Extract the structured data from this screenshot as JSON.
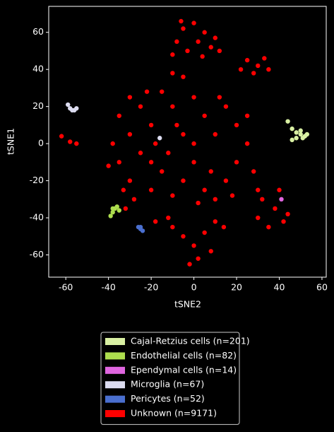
{
  "chart_data": {
    "type": "scatter",
    "xlabel": "tSNE2",
    "ylabel": "tSNE1",
    "xlim": [
      -68,
      62
    ],
    "ylim": [
      -72,
      74
    ],
    "xticks": [
      -60,
      -40,
      -20,
      0,
      20,
      40,
      60
    ],
    "yticks": [
      -60,
      -40,
      -20,
      0,
      20,
      40,
      60
    ],
    "legend": "below",
    "series": [
      {
        "name": "Cajal-Retzius cells (n=201)",
        "color": "#d9f0a3",
        "x": [
          44,
          46,
          48,
          50,
          52,
          48,
          50,
          53,
          46,
          51
        ],
        "y": [
          12,
          8,
          6,
          5,
          4,
          3,
          7,
          5,
          2,
          3
        ]
      },
      {
        "name": "Endothelial cells (n=82)",
        "color": "#addd4e",
        "x": [
          -38,
          -36,
          -38,
          -39,
          -37,
          -35
        ],
        "y": [
          -35,
          -34,
          -37,
          -39,
          -35,
          -36
        ]
      },
      {
        "name": "Ependymal cells (n=14)",
        "color": "#e066e0",
        "x": [
          41
        ],
        "y": [
          -30
        ]
      },
      {
        "name": "Microglia (n=67)",
        "color": "#dcdcf0",
        "x": [
          -59,
          -58,
          -57,
          -55,
          -56,
          -16
        ],
        "y": [
          21,
          19,
          18,
          19,
          18,
          3
        ]
      },
      {
        "name": "Pericytes (n=52)",
        "color": "#4a6fcf",
        "x": [
          -26,
          -25,
          -24,
          -25
        ],
        "y": [
          -45,
          -46,
          -47,
          -45
        ]
      },
      {
        "name": "Unknown (n=9171)",
        "color": "#ff0000",
        "x": [
          -5,
          0,
          5,
          -8,
          2,
          8,
          -3,
          10,
          -10,
          4,
          12,
          -6,
          25,
          30,
          33,
          28,
          22,
          35,
          -10,
          -5,
          -62,
          -58,
          -55,
          -30,
          -25,
          -35,
          -20,
          -30,
          -38,
          -25,
          -35,
          -15,
          -30,
          -20,
          -10,
          -5,
          0,
          5,
          10,
          15,
          20,
          25,
          20,
          15,
          25,
          10,
          5,
          0,
          -5,
          -10,
          -15,
          -20,
          -28,
          -12,
          0,
          8,
          18,
          28,
          30,
          -40,
          -18,
          -8,
          12,
          2,
          -22,
          -33,
          32,
          38,
          42,
          35,
          40,
          30,
          44,
          -10,
          -5,
          0,
          5,
          10,
          2,
          -2,
          8,
          -12,
          14,
          -32,
          -18
        ],
        "y": [
          62,
          65,
          60,
          55,
          55,
          52,
          50,
          57,
          48,
          47,
          50,
          66,
          45,
          42,
          46,
          38,
          40,
          40,
          38,
          36,
          4,
          1,
          0,
          25,
          20,
          15,
          10,
          5,
          0,
          -5,
          -10,
          -15,
          -20,
          -25,
          -28,
          -20,
          -10,
          -25,
          -30,
          -20,
          -10,
          0,
          10,
          20,
          15,
          5,
          15,
          25,
          5,
          20,
          28,
          -10,
          -30,
          -5,
          0,
          -15,
          -28,
          -15,
          -25,
          -12,
          0,
          10,
          25,
          -32,
          28,
          -25,
          -30,
          -35,
          -42,
          -45,
          -25,
          -40,
          -38,
          -45,
          -50,
          -55,
          -48,
          -42,
          -62,
          -65,
          -58,
          -40,
          -45,
          -35,
          -42
        ]
      }
    ]
  }
}
